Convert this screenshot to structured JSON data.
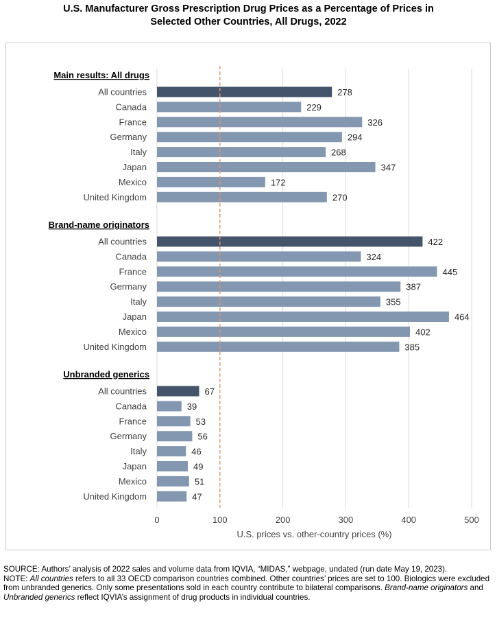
{
  "title": {
    "line1": "U.S. Manufacturer Gross Prescription Drug Prices as a Percentage of Prices in",
    "line2": "Selected Other Countries, All Drugs, 2022"
  },
  "colors": {
    "highlight_bar": "#44546a",
    "regular_bar": "#8497b0",
    "reference_line": "#e69366",
    "gridline": "#d9d9d9"
  },
  "chart_data": {
    "type": "bar",
    "orientation": "horizontal",
    "xlabel": "U.S. prices vs. other-country prices (%)",
    "xlim": [
      0,
      500
    ],
    "xticks": [
      0,
      100,
      200,
      300,
      400,
      500
    ],
    "reference_line": 100,
    "grid": true,
    "groups": [
      {
        "heading": "Main results: All drugs",
        "categories": [
          "All countries",
          "Canada",
          "France",
          "Germany",
          "Italy",
          "Japan",
          "Mexico",
          "United Kingdom"
        ],
        "values": [
          278,
          229,
          326,
          294,
          268,
          347,
          172,
          270
        ]
      },
      {
        "heading": "Brand-name originators",
        "categories": [
          "All countries",
          "Canada",
          "France",
          "Germany",
          "Italy",
          "Japan",
          "Mexico",
          "United Kingdom"
        ],
        "values": [
          422,
          324,
          445,
          387,
          355,
          464,
          402,
          385
        ]
      },
      {
        "heading": "Unbranded generics",
        "categories": [
          "All countries",
          "Canada",
          "France",
          "Germany",
          "Italy",
          "Japan",
          "Mexico",
          "United Kingdom"
        ],
        "values": [
          67,
          39,
          53,
          56,
          46,
          49,
          51,
          47
        ]
      }
    ]
  },
  "notes": {
    "source": "SOURCE: Authors’ analysis of 2022 sales and volume data from IQVIA, “MIDAS,” webpage, undated (run date May 19, 2023).",
    "note_prefix": "NOTE: ",
    "note_all_countries": "All countries",
    "note_part1": " refers to all 33 OECD comparison countries combined. Other countries’ prices are set to 100. Biologics were excluded from unbranded generics. Only some presentations sold in each country contribute to bilateral comparisons. ",
    "note_brand": "Brand-name originators",
    "note_and": " and ",
    "note_generics": "Unbranded generics",
    "note_part2": " reflect IQVIA’s assignment of drug products in individual countries."
  }
}
